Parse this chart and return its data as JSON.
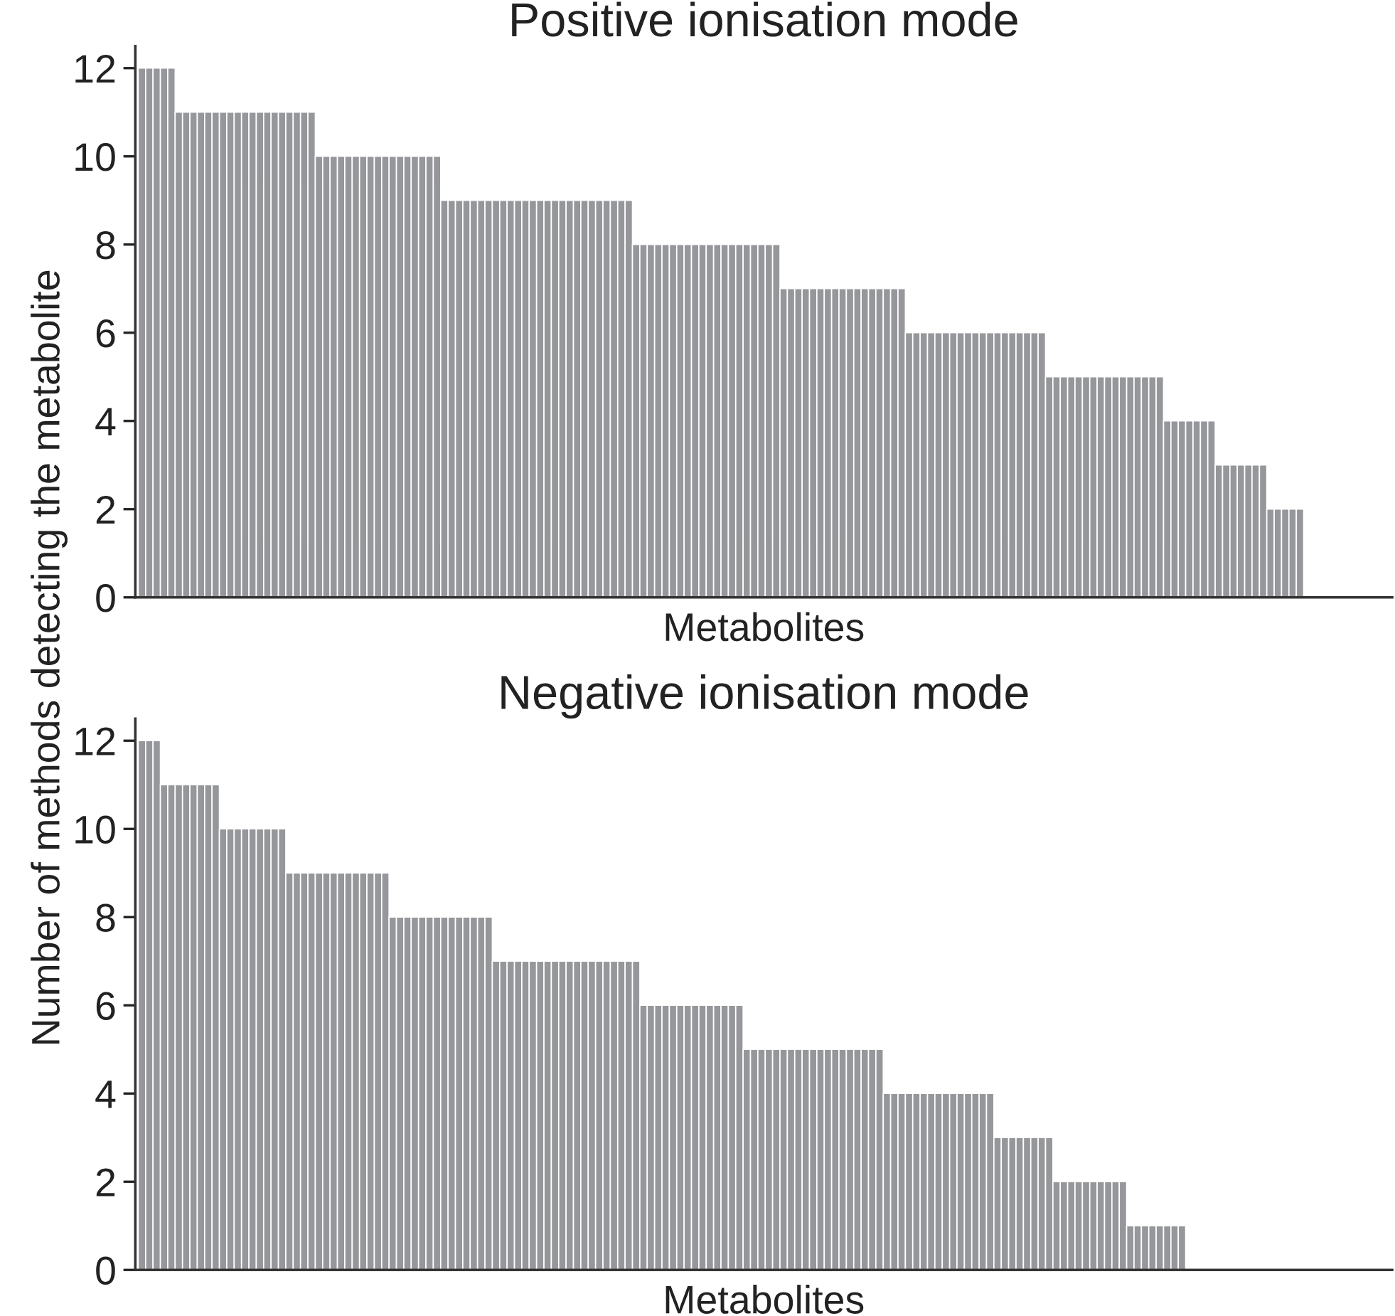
{
  "chart_data": [
    {
      "type": "bar",
      "title": "Positive ionisation mode",
      "xlabel": "Metabolites",
      "ylabel": "Number of methods detecting the metabolite",
      "color": "#96979b",
      "ylim": [
        0,
        12.5
      ],
      "yticks": [
        0,
        2,
        4,
        6,
        8,
        10,
        12
      ],
      "grid": false,
      "legend": false,
      "categories": [
        null,
        null,
        null,
        null,
        null,
        null,
        null,
        null,
        null,
        null,
        null,
        null,
        null,
        null,
        null,
        null,
        null,
        null,
        null,
        null,
        null,
        null,
        null,
        null,
        null,
        null,
        null,
        null,
        null,
        null,
        null,
        null,
        null,
        null,
        null,
        null,
        null,
        null,
        null,
        null,
        null,
        null,
        null,
        null,
        null,
        null,
        null,
        null,
        null,
        null,
        null,
        null,
        null,
        null,
        null,
        null,
        null,
        null,
        null,
        null,
        null,
        null,
        null,
        null,
        null,
        null,
        null,
        null,
        null,
        null,
        null,
        null,
        null,
        null,
        null,
        null,
        null,
        null,
        null,
        null,
        null,
        null,
        null,
        null,
        null,
        null,
        null,
        null,
        null,
        null,
        null,
        null,
        null,
        null,
        null,
        null,
        null,
        null,
        null,
        null,
        null,
        null,
        null,
        null,
        null,
        null,
        null,
        null,
        null,
        null,
        null,
        null,
        null,
        null,
        null,
        null,
        null,
        null,
        null,
        null,
        null,
        null,
        null,
        null,
        null,
        null,
        null,
        null,
        null,
        null,
        null,
        null,
        null,
        null,
        null,
        null,
        null,
        null,
        null,
        null,
        null,
        null,
        null,
        null,
        null,
        null,
        null,
        null,
        null,
        null,
        null,
        null,
        null,
        null,
        null,
        null,
        null,
        null
      ],
      "values": [
        12,
        12,
        12,
        12,
        12,
        11,
        11,
        11,
        11,
        11,
        11,
        11,
        11,
        11,
        11,
        11,
        11,
        11,
        11,
        11,
        11,
        11,
        11,
        11,
        10,
        10,
        10,
        10,
        10,
        10,
        10,
        10,
        10,
        10,
        10,
        10,
        10,
        10,
        10,
        10,
        10,
        9,
        9,
        9,
        9,
        9,
        9,
        9,
        9,
        9,
        9,
        9,
        9,
        9,
        9,
        9,
        9,
        9,
        9,
        9,
        9,
        9,
        9,
        9,
        9,
        9,
        9,
        8,
        8,
        8,
        8,
        8,
        8,
        8,
        8,
        8,
        8,
        8,
        8,
        8,
        8,
        8,
        8,
        8,
        8,
        8,
        8,
        7,
        7,
        7,
        7,
        7,
        7,
        7,
        7,
        7,
        7,
        7,
        7,
        7,
        7,
        7,
        7,
        7,
        6,
        6,
        6,
        6,
        6,
        6,
        6,
        6,
        6,
        6,
        6,
        6,
        6,
        6,
        6,
        6,
        6,
        6,
        6,
        5,
        5,
        5,
        5,
        5,
        5,
        5,
        5,
        5,
        5,
        5,
        5,
        5,
        5,
        5,
        5,
        4,
        4,
        4,
        4,
        4,
        4,
        4,
        3,
        3,
        3,
        3,
        3,
        3,
        3,
        2,
        2,
        2,
        2,
        2
      ]
    },
    {
      "type": "bar",
      "title": "Negative ionisation mode",
      "xlabel": "Metabolites",
      "color": "#96979b",
      "ylim": [
        0,
        12.5
      ],
      "yticks": [
        0,
        2,
        4,
        6,
        8,
        10,
        12
      ],
      "grid": false,
      "legend": false,
      "categories": [
        null,
        null,
        null,
        null,
        null,
        null,
        null,
        null,
        null,
        null,
        null,
        null,
        null,
        null,
        null,
        null,
        null,
        null,
        null,
        null,
        null,
        null,
        null,
        null,
        null,
        null,
        null,
        null,
        null,
        null,
        null,
        null,
        null,
        null,
        null,
        null,
        null,
        null,
        null,
        null,
        null,
        null,
        null,
        null,
        null,
        null,
        null,
        null,
        null,
        null,
        null,
        null,
        null,
        null,
        null,
        null,
        null,
        null,
        null,
        null,
        null,
        null,
        null,
        null,
        null,
        null,
        null,
        null,
        null,
        null,
        null,
        null,
        null,
        null,
        null,
        null,
        null,
        null,
        null,
        null,
        null,
        null,
        null,
        null,
        null,
        null,
        null,
        null,
        null,
        null,
        null,
        null,
        null,
        null,
        null,
        null,
        null,
        null,
        null,
        null,
        null,
        null,
        null,
        null,
        null,
        null,
        null,
        null,
        null,
        null,
        null,
        null,
        null,
        null,
        null,
        null,
        null,
        null,
        null,
        null,
        null,
        null,
        null,
        null,
        null,
        null,
        null,
        null,
        null,
        null,
        null,
        null,
        null,
        null,
        null,
        null,
        null,
        null,
        null,
        null,
        null,
        null
      ],
      "values": [
        12,
        12,
        12,
        11,
        11,
        11,
        11,
        11,
        11,
        11,
        11,
        10,
        10,
        10,
        10,
        10,
        10,
        10,
        10,
        10,
        9,
        9,
        9,
        9,
        9,
        9,
        9,
        9,
        9,
        9,
        9,
        9,
        9,
        9,
        8,
        8,
        8,
        8,
        8,
        8,
        8,
        8,
        8,
        8,
        8,
        8,
        8,
        8,
        7,
        7,
        7,
        7,
        7,
        7,
        7,
        7,
        7,
        7,
        7,
        7,
        7,
        7,
        7,
        7,
        7,
        7,
        7,
        7,
        6,
        6,
        6,
        6,
        6,
        6,
        6,
        6,
        6,
        6,
        6,
        6,
        6,
        6,
        5,
        5,
        5,
        5,
        5,
        5,
        5,
        5,
        5,
        5,
        5,
        5,
        5,
        5,
        5,
        5,
        5,
        5,
        5,
        4,
        4,
        4,
        4,
        4,
        4,
        4,
        4,
        4,
        4,
        4,
        4,
        4,
        4,
        4,
        3,
        3,
        3,
        3,
        3,
        3,
        3,
        3,
        2,
        2,
        2,
        2,
        2,
        2,
        2,
        2,
        2,
        2,
        1,
        1,
        1,
        1,
        1,
        1,
        1,
        1
      ]
    }
  ]
}
